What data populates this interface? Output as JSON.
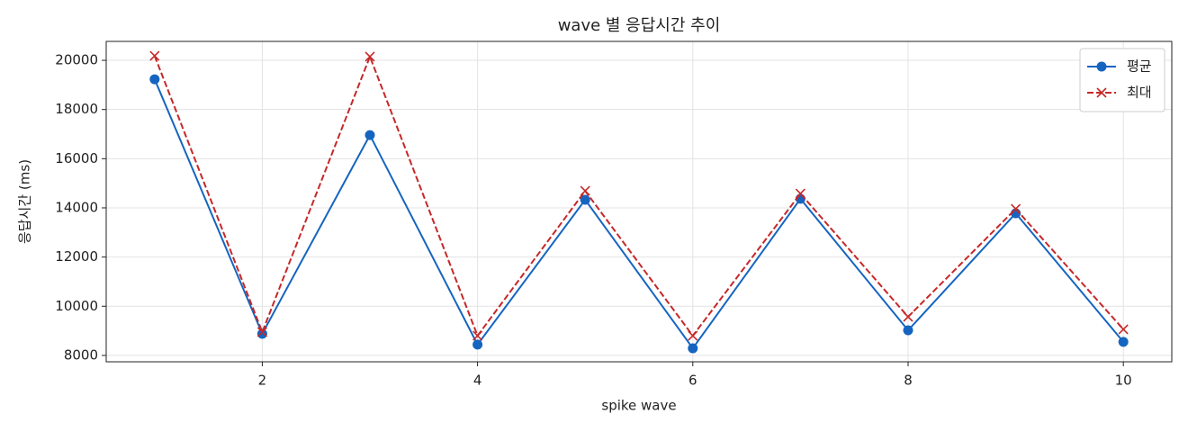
{
  "chart_data": {
    "type": "line",
    "title": "wave 별 응답시간 추이",
    "xlabel": "spike wave",
    "ylabel": "응답시간 (ms)",
    "x": [
      1,
      2,
      3,
      4,
      5,
      6,
      7,
      8,
      9,
      10
    ],
    "series": [
      {
        "name": "평균",
        "color": "#1565c0",
        "marker": "circle",
        "dash": "solid",
        "values": [
          19230,
          8880,
          16960,
          8440,
          14330,
          8290,
          14370,
          9020,
          13780,
          8550
        ]
      },
      {
        "name": "최대",
        "color": "#c62828",
        "marker": "x",
        "dash": "dashed",
        "values": [
          20180,
          8950,
          20150,
          8800,
          14690,
          8800,
          14580,
          9570,
          13960,
          9060
        ]
      }
    ],
    "xlim": [
      0.55,
      10.45
    ],
    "xticks": [
      2,
      4,
      6,
      8,
      10
    ],
    "ylim": [
      7740,
      20770
    ],
    "yticks": [
      8000,
      10000,
      12000,
      14000,
      16000,
      18000,
      20000
    ],
    "grid": true,
    "legend": "upper right"
  }
}
